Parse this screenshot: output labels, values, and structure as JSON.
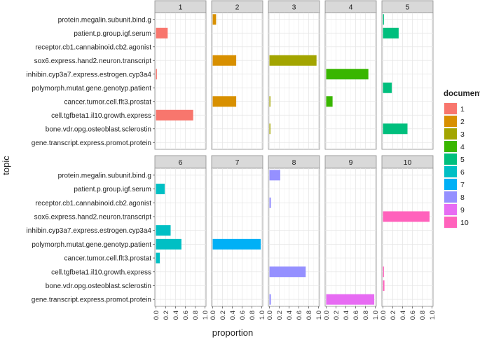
{
  "chart_data": {
    "type": "bar",
    "orientation": "horizontal",
    "faceted": true,
    "xlabel": "proportion",
    "ylabel": "topic",
    "xlim": [
      0,
      1
    ],
    "xticks": [
      "0.0",
      "0.2",
      "0.4",
      "0.6",
      "0.8",
      "1.0"
    ],
    "grid": true,
    "legend": {
      "title": "document",
      "position": "right"
    },
    "topics": [
      "protein.megalin.subunit.bind.g",
      "patient.p.group.igf.serum",
      "receptor.cb1.cannabinoid.cb2.agonist",
      "sox6.express.hand2.neuron.transcript",
      "inhibin.cyp3a7.express.estrogen.cyp3a4",
      "polymorph.mutat.gene.genotyp.patient",
      "cancer.tumor.cell.flt3.prostat",
      "cell.tgfbeta1.il10.growth.express",
      "bone.vdr.opg.osteoblast.sclerostin",
      "gene.transcript.express.promot.protein"
    ],
    "panels": [
      {
        "label": "1",
        "color": "#F8766D",
        "values": [
          0,
          0.24,
          0,
          0,
          0.02,
          0,
          0,
          0.76,
          0,
          0
        ]
      },
      {
        "label": "2",
        "color": "#D89000",
        "values": [
          0.07,
          0,
          0,
          0.48,
          0,
          0,
          0.48,
          0,
          0,
          0
        ]
      },
      {
        "label": "3",
        "color": "#A3A500",
        "values": [
          0,
          0,
          0,
          0.96,
          0,
          0,
          0.02,
          0,
          0.02,
          0
        ]
      },
      {
        "label": "4",
        "color": "#39B600",
        "values": [
          0,
          0,
          0,
          0,
          0.86,
          0,
          0.13,
          0,
          0,
          0
        ]
      },
      {
        "label": "5",
        "color": "#00BF7D",
        "values": [
          0.02,
          0.32,
          0,
          0,
          0,
          0.18,
          0,
          0,
          0.5,
          0
        ]
      },
      {
        "label": "6",
        "color": "#00BFC4",
        "values": [
          0,
          0.18,
          0,
          0,
          0.3,
          0.52,
          0.08,
          0,
          0,
          0
        ]
      },
      {
        "label": "7",
        "color": "#00B0F6",
        "values": [
          0,
          0,
          0,
          0,
          0,
          0.98,
          0,
          0,
          0,
          0
        ]
      },
      {
        "label": "8",
        "color": "#9590FF",
        "values": [
          0.22,
          0,
          0.03,
          0,
          0,
          0,
          0,
          0.74,
          0,
          0.03
        ]
      },
      {
        "label": "9",
        "color": "#E76BF3",
        "values": [
          0,
          0,
          0,
          0,
          0,
          0,
          0,
          0,
          0,
          0.98
        ]
      },
      {
        "label": "10",
        "color": "#FF62BC",
        "values": [
          0,
          0,
          0,
          0.95,
          0,
          0,
          0,
          0.02,
          0.03,
          0
        ]
      }
    ]
  }
}
